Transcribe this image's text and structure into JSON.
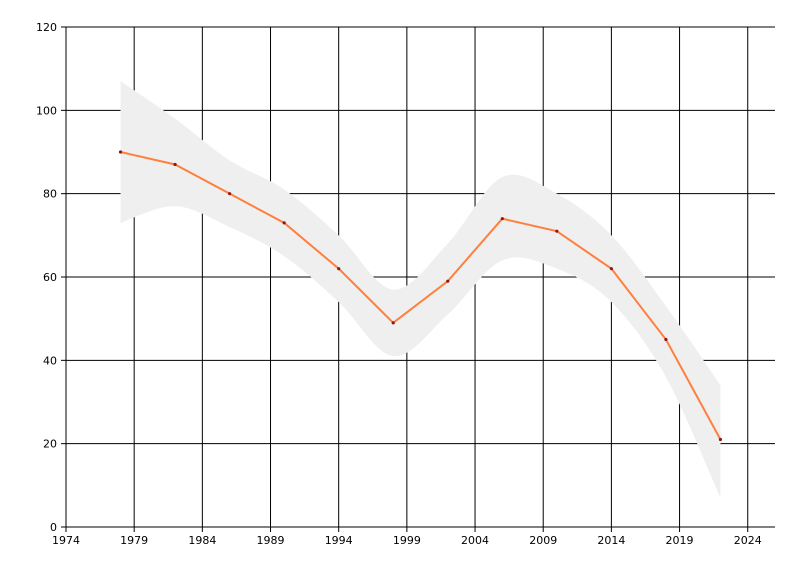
{
  "chart_data": {
    "type": "line",
    "title": "",
    "xlabel": "",
    "ylabel": "",
    "xlim": [
      1974,
      2026
    ],
    "ylim": [
      0,
      120
    ],
    "x_ticks": [
      1974,
      1979,
      1984,
      1989,
      1994,
      1999,
      2004,
      2009,
      2014,
      2019,
      2024
    ],
    "y_ticks": [
      0,
      20,
      40,
      60,
      80,
      100,
      120
    ],
    "grid": true,
    "legend": "none",
    "series": [
      {
        "x": [
          1978,
          1982,
          1986,
          1990,
          1994,
          1998,
          2002,
          2006,
          2010,
          2014,
          2018,
          2022
        ],
        "y": [
          90,
          87,
          80,
          73,
          62,
          49,
          59,
          74,
          71,
          62,
          45,
          21
        ],
        "color": "#ff7f3f",
        "marker_color": "#8b1a1a"
      }
    ],
    "confidence_band": {
      "x": [
        1978,
        1982,
        1986,
        1990,
        1994,
        1998,
        2002,
        2006,
        2010,
        2014,
        2018,
        2022
      ],
      "upper": [
        107,
        98,
        88,
        81,
        70,
        57,
        68,
        84,
        80,
        70,
        53,
        34
      ],
      "lower": [
        73,
        77,
        72,
        65,
        54,
        41,
        51,
        64,
        62,
        54,
        36,
        7
      ],
      "color": "#efefef"
    }
  }
}
